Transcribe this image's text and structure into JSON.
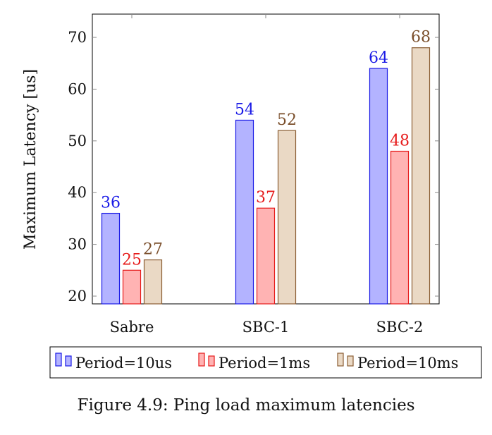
{
  "chart_data": {
    "type": "bar",
    "title": "",
    "xlabel": "",
    "ylabel": "Maximum Latency [us]",
    "categories": [
      "Sabre",
      "SBC-1",
      "SBC-2"
    ],
    "series": [
      {
        "name": "Period=10us",
        "values": [
          36,
          54,
          64
        ],
        "fill": "#b3b3ff",
        "stroke": "#1a1ae6",
        "label_color": "#1a1ae6"
      },
      {
        "name": "Period=1ms",
        "values": [
          25,
          37,
          48
        ],
        "fill": "#ffb3b3",
        "stroke": "#e61a1a",
        "label_color": "#e61a1a"
      },
      {
        "name": "Period=10ms",
        "values": [
          27,
          52,
          68
        ],
        "fill": "#ead9c5",
        "stroke": "#8b5e34",
        "label_color": "#7a4e2a"
      }
    ],
    "ylim": [
      18.5,
      74.5
    ],
    "yticks": [
      20,
      30,
      40,
      50,
      60,
      70
    ],
    "grid": false,
    "legend_position": "bottom"
  },
  "caption": "Figure 4.9: Ping load maximum latencies"
}
